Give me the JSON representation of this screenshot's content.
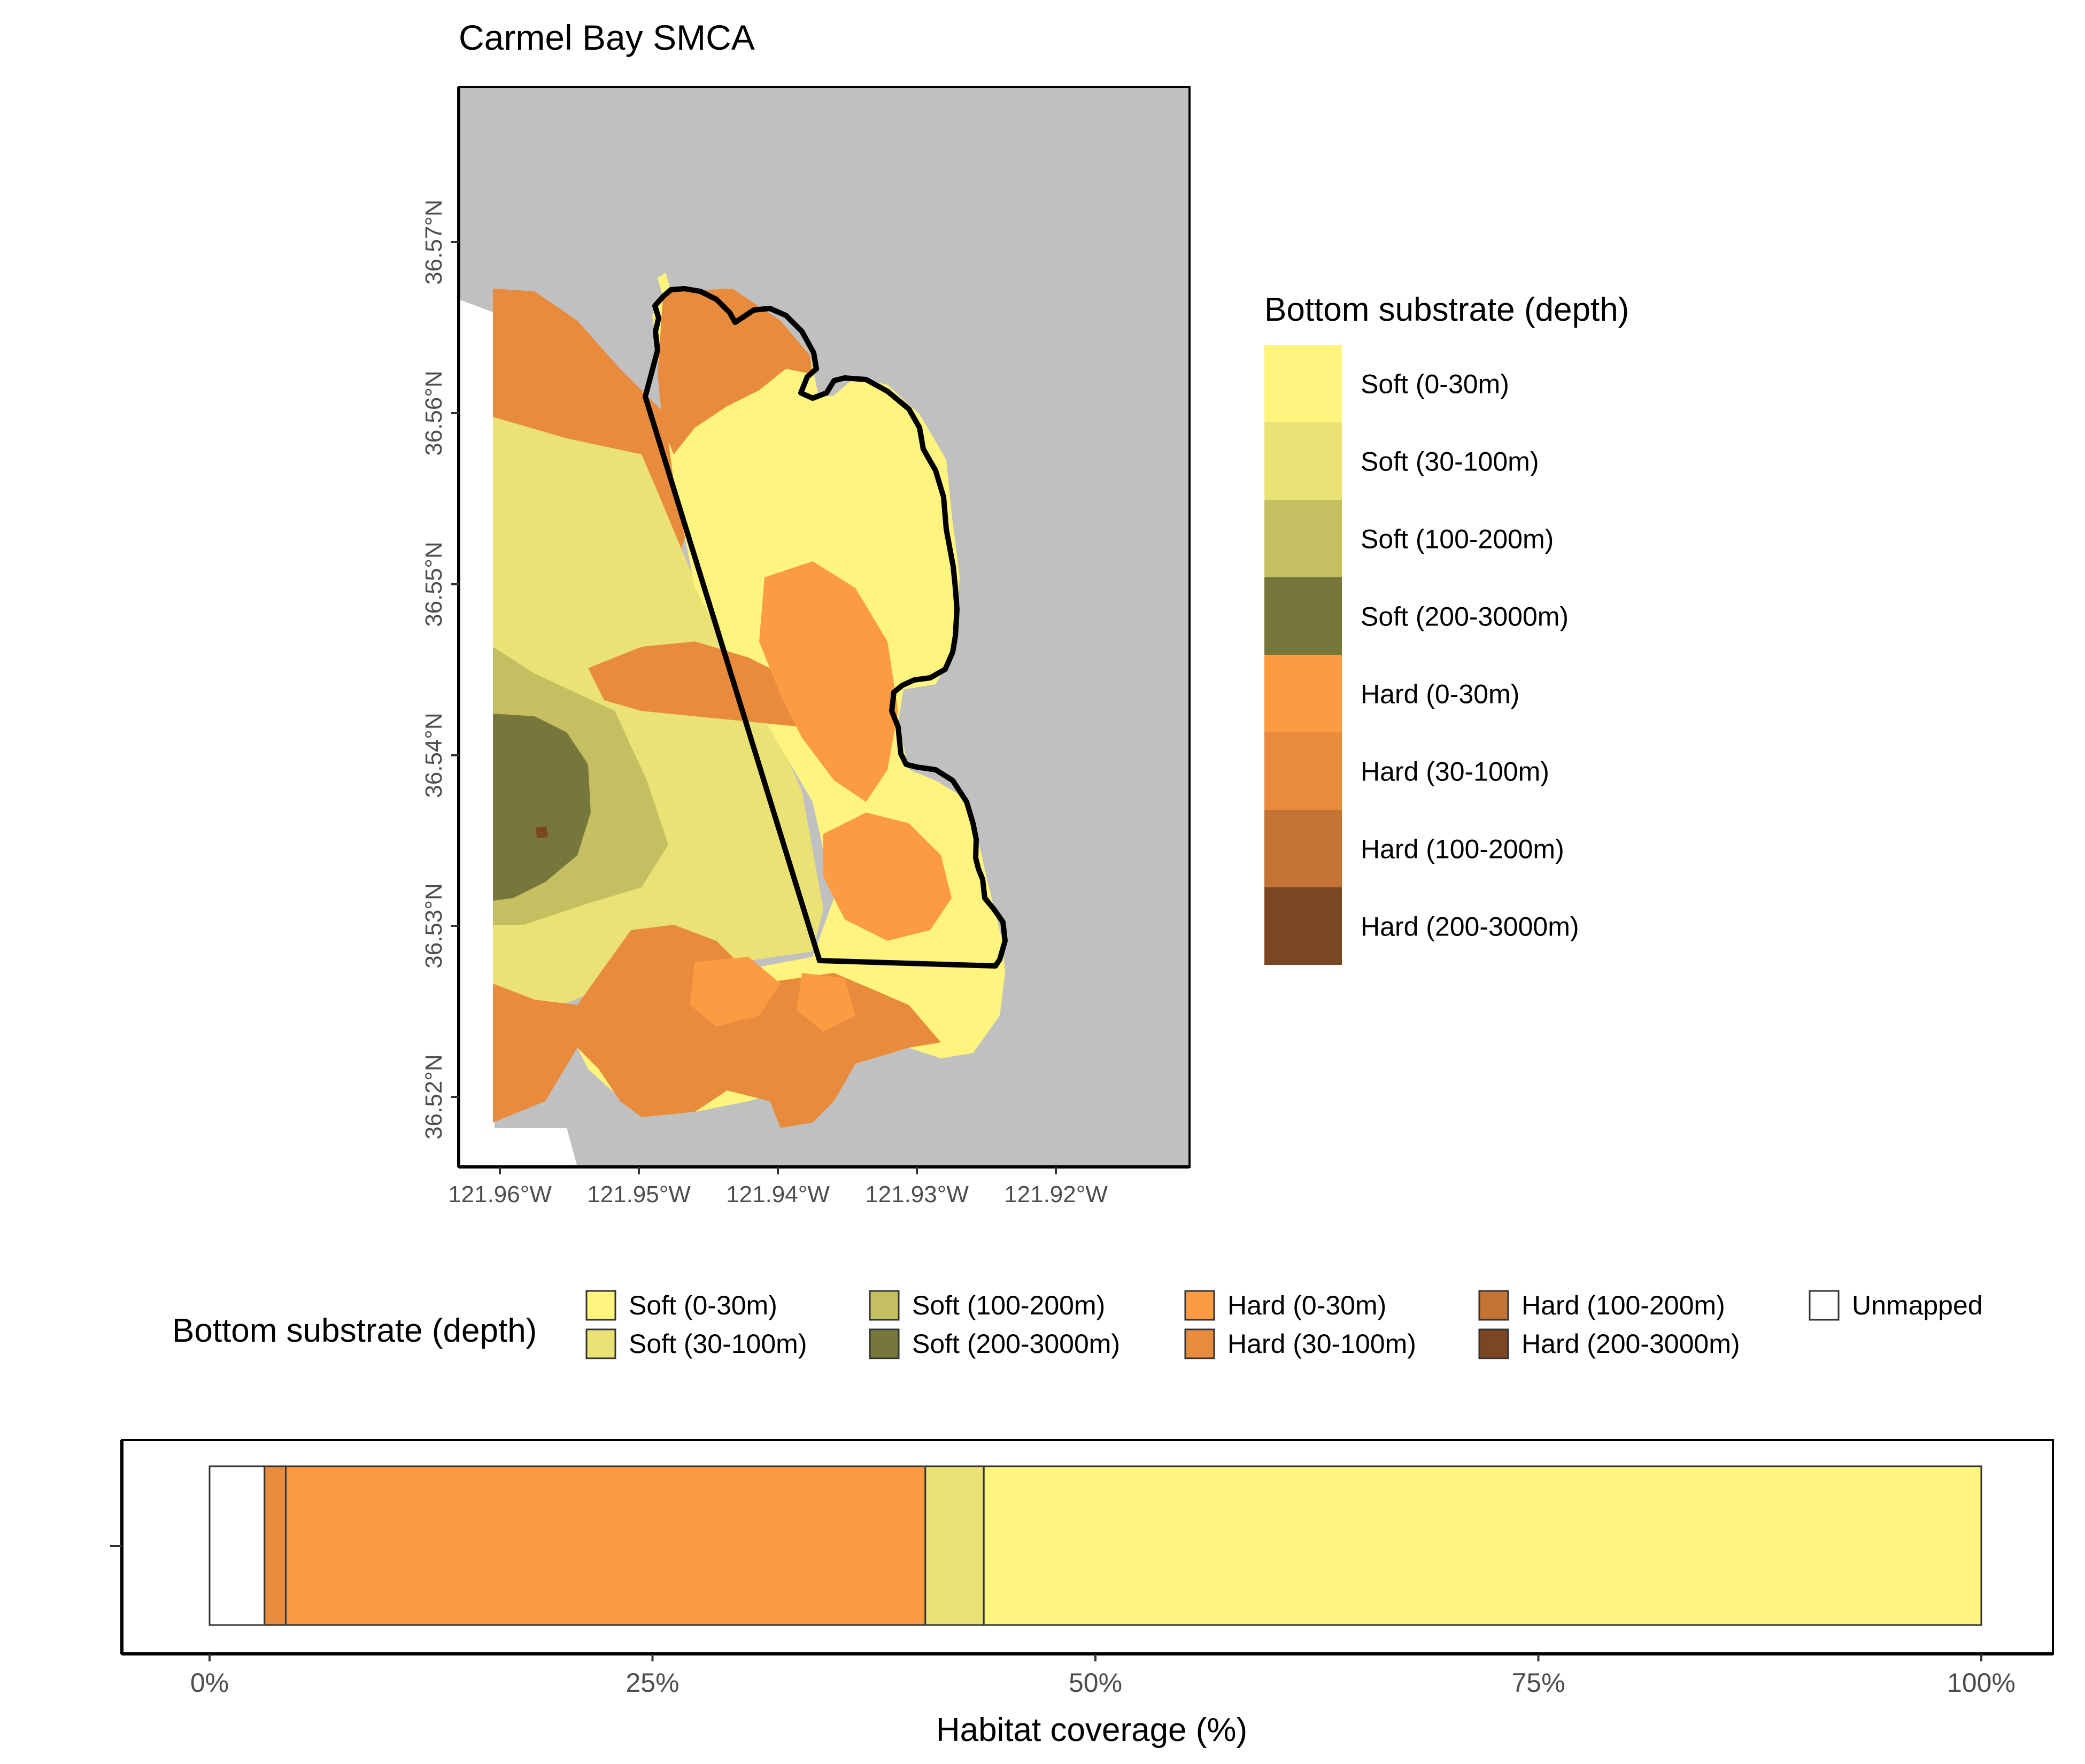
{
  "map": {
    "title": "Carmel Bay SMCA",
    "lat_ticks": [
      "36.57°N",
      "36.56°N",
      "36.55°N",
      "36.54°N",
      "36.53°N",
      "36.52°N"
    ],
    "lon_ticks": [
      "121.96°W",
      "121.95°W",
      "121.94°W",
      "121.93°W",
      "121.92°W"
    ],
    "land_color": "#c0c0c0",
    "boundary_color": "#000000"
  },
  "legend_right": {
    "title": "Bottom substrate (depth)",
    "items": [
      {
        "label": "Soft (0-30m)",
        "color": "#fef47e"
      },
      {
        "label": "Soft (30-100m)",
        "color": "#ebe276"
      },
      {
        "label": "Soft (100-200m)",
        "color": "#c4c061"
      },
      {
        "label": "Soft (200-3000m)",
        "color": "#77773b"
      },
      {
        "label": "Hard (0-30m)",
        "color": "#fd9b42"
      },
      {
        "label": "Hard (30-100m)",
        "color": "#e88b3c"
      },
      {
        "label": "Hard (100-200m)",
        "color": "#c37333"
      },
      {
        "label": "Hard (200-3000m)",
        "color": "#7b4723"
      }
    ]
  },
  "legend_bottom": {
    "title": "Bottom substrate (depth)",
    "items": [
      {
        "label": "Soft (0-30m)",
        "color": "#fef47e"
      },
      {
        "label": "Soft (30-100m)",
        "color": "#ebe276"
      },
      {
        "label": "Soft (100-200m)",
        "color": "#c4c061"
      },
      {
        "label": "Soft (200-3000m)",
        "color": "#77773b"
      },
      {
        "label": "Hard (0-30m)",
        "color": "#fd9b42"
      },
      {
        "label": "Hard (30-100m)",
        "color": "#e88b3c"
      },
      {
        "label": "Hard (100-200m)",
        "color": "#c37333"
      },
      {
        "label": "Hard (200-3000m)",
        "color": "#7b4723"
      },
      {
        "label": "Unmapped",
        "color": "#ffffff"
      }
    ]
  },
  "chart_data": {
    "type": "bar",
    "orientation": "horizontal-stacked",
    "xlabel": "Habitat coverage (%)",
    "ylabel": "",
    "xlim": [
      0,
      100
    ],
    "x_ticks": [
      "0%",
      "25%",
      "50%",
      "75%",
      "100%"
    ],
    "segments": [
      {
        "name": "Unmapped",
        "value": 3.1,
        "color": "#ffffff"
      },
      {
        "name": "Hard (30-100m)",
        "value": 1.2,
        "color": "#e88b3c"
      },
      {
        "name": "Hard (0-30m)",
        "value": 36.1,
        "color": "#fd9b42"
      },
      {
        "name": "Soft (30-100m)",
        "value": 3.3,
        "color": "#ebe276"
      },
      {
        "name": "Soft (0-30m)",
        "value": 56.3,
        "color": "#fef47e"
      }
    ]
  }
}
